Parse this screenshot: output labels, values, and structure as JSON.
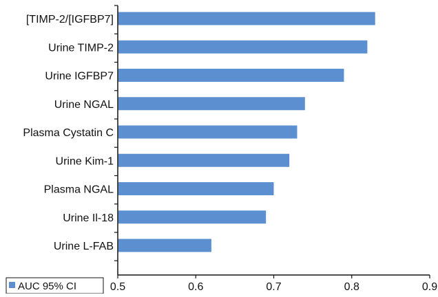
{
  "chart_data": {
    "type": "bar",
    "orientation": "horizontal",
    "categories": [
      "[TIMP-2/[IGFBP7]",
      "Urine TIMP-2",
      "Urine IGFBP7",
      "Urine NGAL",
      "Plasma Cystatin C",
      "Urine Kim-1",
      "Plasma NGAL",
      "Urine Il-18",
      "Urine L-FAB"
    ],
    "series": [
      {
        "name": "AUC 95% CI",
        "values": [
          0.83,
          0.82,
          0.79,
          0.74,
          0.73,
          0.72,
          0.7,
          0.69,
          0.62
        ]
      }
    ],
    "xlim": [
      0.5,
      0.9
    ],
    "xticks": [
      "0.5",
      "0.6",
      "0.7",
      "0.8",
      "0.9"
    ],
    "grid": false,
    "legend_position": "bottom-left",
    "bar_color": "#5b8fd0"
  }
}
